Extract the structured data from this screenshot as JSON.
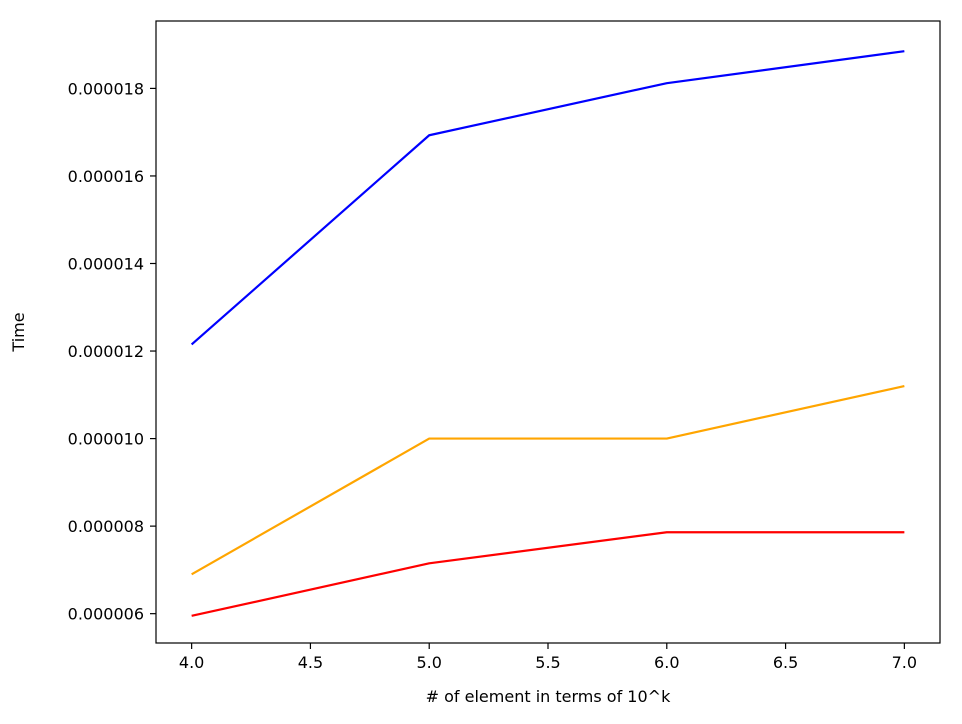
{
  "chart_data": {
    "type": "line",
    "title": "",
    "xlabel": "# of element in terms of 10^k",
    "ylabel": "Time",
    "x": [
      4.0,
      5.0,
      6.0,
      7.0
    ],
    "xlim": [
      3.85,
      7.15
    ],
    "ylim": [
      5.33e-06,
      1.954e-05
    ],
    "xticks": [
      4.0,
      4.5,
      5.0,
      5.5,
      6.0,
      6.5,
      7.0
    ],
    "xtick_labels": [
      "4.0",
      "4.5",
      "5.0",
      "5.5",
      "6.0",
      "6.5",
      "7.0"
    ],
    "yticks": [
      6e-06,
      8e-06,
      1e-05,
      1.2e-05,
      1.4e-05,
      1.6e-05,
      1.8e-05
    ],
    "ytick_labels": [
      "0.000006",
      "0.000008",
      "0.000010",
      "0.000012",
      "0.000014",
      "0.000016",
      "0.000018"
    ],
    "grid": false,
    "series": [
      {
        "color": "#0000ff",
        "values": [
          1.215e-05,
          1.693e-05,
          1.812e-05,
          1.885e-05
        ]
      },
      {
        "color": "#ffa500",
        "values": [
          6.9e-06,
          1e-05,
          1e-05,
          1.12e-05
        ]
      },
      {
        "color": "#ff0000",
        "values": [
          5.95e-06,
          7.15e-06,
          7.86e-06,
          7.86e-06
        ]
      }
    ]
  }
}
